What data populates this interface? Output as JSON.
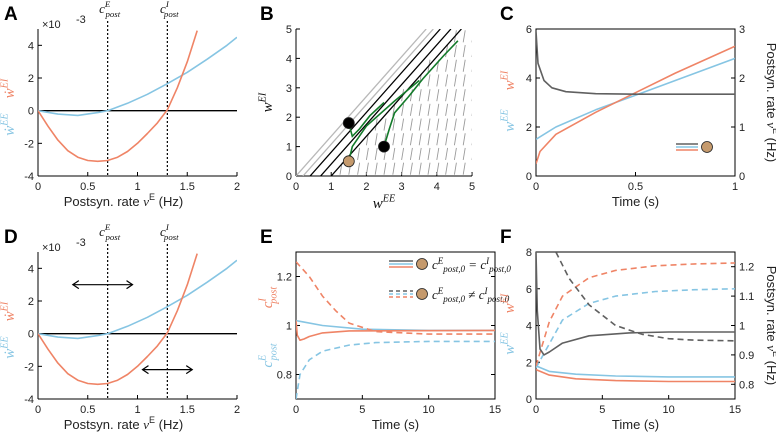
{
  "colors": {
    "blue": "#86c5e3",
    "orange": "#ef8466",
    "gray": "#606060",
    "green": "#137a2a",
    "light": "#b8b8b8",
    "dot": "#c59a6d"
  },
  "panel_labels": [
    "A",
    "B",
    "C",
    "D",
    "E",
    "F"
  ],
  "chart_data": [
    {
      "panel": "A",
      "type": "line",
      "xlabel": "Postsyn. rate ν^E (Hz)",
      "exponent": "×10^-3",
      "xlim": [
        0,
        2
      ],
      "ylim": [
        -4,
        5
      ],
      "xticks": [
        "0",
        "0.5",
        "1",
        "1.5",
        "2"
      ],
      "yticks": [
        "-4",
        "-2",
        "0",
        "2",
        "4"
      ],
      "ylabel_blue": "ẇ^EE",
      "ylabel_orange": "ẇ^EI",
      "vlines": [
        {
          "x": 0.7,
          "label": "c^E_post"
        },
        {
          "x": 1.3,
          "label": "c^I_post"
        }
      ],
      "series": [
        {
          "name": "ẇEE",
          "color": "blue",
          "x": [
            0,
            0.2,
            0.4,
            0.6,
            0.7,
            0.9,
            1.1,
            1.3,
            1.5,
            1.7,
            1.9,
            2.0
          ],
          "y": [
            0,
            -0.21,
            -0.29,
            -0.12,
            0,
            0.45,
            1.0,
            1.65,
            2.35,
            3.15,
            4.0,
            4.5
          ]
        },
        {
          "name": "ẇEI",
          "color": "orange",
          "x": [
            0,
            0.1,
            0.2,
            0.3,
            0.4,
            0.5,
            0.6,
            0.7,
            0.8,
            0.9,
            1.0,
            1.1,
            1.2,
            1.3,
            1.4,
            1.5,
            1.6
          ],
          "y": [
            0,
            -0.95,
            -1.8,
            -2.45,
            -2.85,
            -3.05,
            -3.1,
            -3.05,
            -2.85,
            -2.5,
            -2.0,
            -1.4,
            -0.75,
            0.05,
            1.4,
            3.0,
            4.9
          ]
        }
      ]
    },
    {
      "panel": "B",
      "type": "line",
      "xlabel": "w^EE",
      "ylabel": "w^EI",
      "xlim": [
        0,
        5
      ],
      "ylim": [
        0,
        5
      ],
      "xticks": [
        "0",
        "1",
        "2",
        "3",
        "4",
        "5"
      ],
      "yticks": [
        "0",
        "1",
        "2",
        "3",
        "4",
        "5"
      ],
      "series": [
        {
          "name": "black diagonal 1",
          "color": "black",
          "x": [
            0.4,
            4.1
          ],
          "y": [
            0,
            5
          ]
        },
        {
          "name": "black diagonal 2",
          "color": "black",
          "x": [
            0.7,
            4.4
          ],
          "y": [
            0,
            5
          ]
        },
        {
          "name": "black diagonal 3",
          "color": "black",
          "x": [
            1.0,
            4.7
          ],
          "y": [
            0,
            5
          ]
        },
        {
          "name": "gray diagonal 1",
          "color": "light",
          "x": [
            0,
            3.7
          ],
          "y": [
            0,
            5
          ]
        },
        {
          "name": "gray diagonal 2",
          "color": "light",
          "x": [
            0.2,
            3.9
          ],
          "y": [
            0,
            5
          ]
        },
        {
          "name": "trajectory 1",
          "color": "green",
          "x": [
            1.5,
            1.6,
            1.8,
            2.1,
            2.5
          ],
          "y": [
            1.8,
            1.35,
            1.6,
            2.05,
            2.5
          ]
        },
        {
          "name": "trajectory 2",
          "color": "green",
          "x": [
            1.5,
            1.6,
            2.0,
            2.8,
            3.5
          ],
          "y": [
            0.5,
            1.0,
            1.7,
            2.55,
            3.25
          ]
        },
        {
          "name": "trajectory 3",
          "color": "green",
          "x": [
            2.5,
            2.65,
            2.8,
            3.2,
            3.6,
            4.2,
            4.6
          ],
          "y": [
            1.0,
            1.6,
            2.15,
            2.7,
            3.3,
            4.1,
            4.6
          ]
        }
      ],
      "markers": [
        {
          "name": "black dot 1",
          "x": 1.5,
          "y": 1.8,
          "color": "black"
        },
        {
          "name": "black dot 2",
          "x": 2.5,
          "y": 1.0,
          "color": "black"
        },
        {
          "name": "tan dot",
          "x": 1.5,
          "y": 0.5,
          "color": "dot"
        }
      ]
    },
    {
      "panel": "C",
      "type": "line",
      "xlabel": "Time (s)",
      "ylabel_blue": "w^EE",
      "ylabel_orange": "w^EI",
      "ylabel_right": "Postsyn. rate ν^E (Hz)",
      "xlim": [
        0,
        1
      ],
      "ylim": [
        0,
        6
      ],
      "ylim_right": [
        0,
        3
      ],
      "xticks": [
        "0",
        "0.5",
        "1"
      ],
      "yticks": [
        "0",
        "2",
        "4",
        "6"
      ],
      "yticks_right": [
        "0",
        "1",
        "2",
        "3"
      ],
      "series": [
        {
          "name": "wEE",
          "color": "blue",
          "x": [
            0,
            0.1,
            0.3,
            0.5,
            0.7,
            1.0
          ],
          "y": [
            1.5,
            2.0,
            2.7,
            3.3,
            3.9,
            4.8
          ]
        },
        {
          "name": "wEI",
          "color": "orange",
          "x": [
            0,
            0.02,
            0.1,
            0.3,
            0.5,
            0.7,
            1.0
          ],
          "y": [
            0.5,
            1.0,
            1.7,
            2.6,
            3.4,
            4.2,
            5.3
          ]
        },
        {
          "name": "rate",
          "color": "gray",
          "axis": "right",
          "x": [
            0,
            0.01,
            0.04,
            0.08,
            0.15,
            0.3,
            0.5,
            1.0
          ],
          "y": [
            2.95,
            2.3,
            1.95,
            1.8,
            1.72,
            1.68,
            1.67,
            1.67
          ]
        }
      ]
    },
    {
      "panel": "D",
      "type": "line",
      "xlabel": "Postsyn. rate ν^E (Hz)",
      "exponent": "×10^-3",
      "xlim": [
        0,
        2
      ],
      "ylim": [
        -4,
        5
      ],
      "xticks": [
        "0",
        "0.5",
        "1",
        "1.5",
        "2"
      ],
      "yticks": [
        "-4",
        "-2",
        "0",
        "2",
        "4"
      ],
      "ylabel_blue": "ẇ^EE",
      "ylabel_orange": "ẇ^EI",
      "vlines": [
        {
          "x": 0.7,
          "label": "c^E_post"
        },
        {
          "x": 1.3,
          "label": "c^I_post"
        }
      ],
      "arrows": [
        {
          "x1": 0.35,
          "x2": 0.95,
          "y": 3.0
        },
        {
          "x1": 1.05,
          "x2": 1.55,
          "y": -2.2
        }
      ],
      "series": [
        {
          "name": "ẇEE",
          "color": "blue",
          "x": [
            0,
            0.2,
            0.4,
            0.6,
            0.7,
            0.9,
            1.1,
            1.3,
            1.5,
            1.7,
            1.9,
            2.0
          ],
          "y": [
            0,
            -0.21,
            -0.29,
            -0.12,
            0,
            0.45,
            1.0,
            1.65,
            2.35,
            3.15,
            4.0,
            4.5
          ]
        },
        {
          "name": "ẇEI",
          "color": "orange",
          "x": [
            0,
            0.1,
            0.2,
            0.3,
            0.4,
            0.5,
            0.6,
            0.7,
            0.8,
            0.9,
            1.0,
            1.1,
            1.2,
            1.3,
            1.4,
            1.5,
            1.6
          ],
          "y": [
            0,
            -0.95,
            -1.8,
            -2.45,
            -2.85,
            -3.05,
            -3.1,
            -3.05,
            -2.85,
            -2.5,
            -2.0,
            -1.4,
            -0.75,
            0.05,
            1.4,
            3.0,
            4.9
          ]
        }
      ]
    },
    {
      "panel": "E",
      "type": "line",
      "xlabel": "Time (s)",
      "ylabel_blue": "c^E_post",
      "ylabel_orange": "c^I_post",
      "xlim": [
        0,
        15
      ],
      "ylim": [
        0.7,
        1.3
      ],
      "xticks": [
        "0",
        "5",
        "10",
        "15"
      ],
      "yticks": [
        "0.8",
        "1",
        "1.2"
      ],
      "legend": [
        "c^E_post,0 = c^I_post,0",
        "c^E_post,0 ≠ c^I_post,0"
      ],
      "series": [
        {
          "name": "cE solid",
          "color": "blue",
          "style": "solid",
          "x": [
            0,
            0.5,
            2,
            5,
            10,
            15
          ],
          "y": [
            1.02,
            1.015,
            1.0,
            0.985,
            0.98,
            0.98
          ]
        },
        {
          "name": "cI solid",
          "color": "orange",
          "style": "solid",
          "x": [
            0,
            0.1,
            0.3,
            0.6,
            1.0,
            2,
            4,
            15
          ],
          "y": [
            1.02,
            0.96,
            0.94,
            0.945,
            0.955,
            0.97,
            0.978,
            0.98
          ]
        },
        {
          "name": "cE dashed",
          "color": "blue",
          "style": "dashed",
          "x": [
            0,
            0.3,
            1,
            2,
            4,
            6,
            10,
            15
          ],
          "y": [
            0.7,
            0.8,
            0.86,
            0.895,
            0.92,
            0.93,
            0.935,
            0.935
          ]
        },
        {
          "name": "cI dashed",
          "color": "orange",
          "style": "dashed",
          "x": [
            0,
            1,
            2,
            3,
            4,
            6,
            10,
            15
          ],
          "y": [
            1.26,
            1.2,
            1.12,
            1.06,
            1.01,
            0.975,
            0.965,
            0.965
          ]
        }
      ]
    },
    {
      "panel": "F",
      "type": "line",
      "xlabel": "Time (s)",
      "ylabel_blue": "w^EE",
      "ylabel_orange": "w^EI",
      "ylabel_right": "Postsyn. rate ν^E (Hz)",
      "xlim": [
        0,
        15
      ],
      "ylim": [
        0,
        8
      ],
      "ylim_right": [
        0.75,
        1.25
      ],
      "xticks": [
        "0",
        "5",
        "10",
        "15"
      ],
      "yticks": [
        "0",
        "2",
        "4",
        "6",
        "8"
      ],
      "yticks_right": [
        "0.8",
        "0.9",
        "1",
        "1.1",
        "1.2"
      ],
      "series": [
        {
          "name": "wEE solid",
          "color": "blue",
          "style": "solid",
          "x": [
            0,
            1,
            3,
            6,
            10,
            15
          ],
          "y": [
            1.8,
            1.5,
            1.35,
            1.25,
            1.2,
            1.2
          ]
        },
        {
          "name": "wEI solid",
          "color": "orange",
          "style": "solid",
          "x": [
            0,
            1,
            3,
            6,
            10,
            15
          ],
          "y": [
            1.6,
            1.3,
            1.1,
            1.0,
            0.95,
            0.95
          ]
        },
        {
          "name": "wEE dashed",
          "color": "blue",
          "style": "dashed",
          "x": [
            0,
            1,
            2,
            4,
            6,
            9,
            12,
            15
          ],
          "y": [
            1.7,
            3.0,
            4.3,
            5.2,
            5.6,
            5.85,
            5.95,
            6.0
          ]
        },
        {
          "name": "wEI dashed",
          "color": "orange",
          "style": "dashed",
          "x": [
            0,
            1,
            2,
            4,
            6,
            9,
            12,
            15
          ],
          "y": [
            1.8,
            4.2,
            5.6,
            6.6,
            7.0,
            7.25,
            7.35,
            7.4
          ]
        },
        {
          "name": "rate solid",
          "color": "gray",
          "style": "solid",
          "axis": "right",
          "x": [
            0,
            0.1,
            0.3,
            0.6,
            1.0,
            2,
            4,
            7,
            10,
            15
          ],
          "y": [
            1.25,
            1.05,
            0.92,
            0.9,
            0.91,
            0.94,
            0.965,
            0.975,
            0.978,
            0.978
          ]
        },
        {
          "name": "rate dashed",
          "color": "gray",
          "style": "dashed",
          "axis": "right",
          "x": [
            1.5,
            2.5,
            4,
            6,
            8,
            10,
            12,
            15
          ],
          "y": [
            1.25,
            1.16,
            1.07,
            1.0,
            0.97,
            0.955,
            0.95,
            0.948
          ]
        }
      ]
    }
  ]
}
